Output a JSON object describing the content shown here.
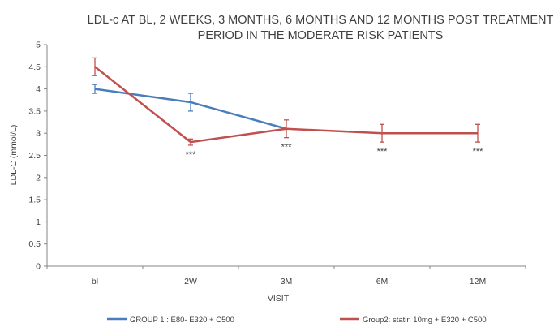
{
  "chart_data": {
    "type": "line",
    "title_lines": [
      "LDL-c AT BL, 2 WEEKS, 3 MONTHS, 6 MONTHS AND 12 MONTHS POST TREATMENT",
      "PERIOD IN THE MODERATE RISK PATIENTS"
    ],
    "xlabel": "VISIT",
    "ylabel": "LDL-C (mmol/L)",
    "categories": [
      "bl",
      "2W",
      "3M",
      "6M",
      "12M"
    ],
    "ylim": [
      0,
      5
    ],
    "yticks": [
      "0",
      "0.5",
      "1",
      "1.5",
      "2",
      "2.5",
      "3",
      "3.5",
      "4",
      "4.5",
      "5"
    ],
    "grid": false,
    "legend_position": "bottom",
    "series": [
      {
        "name": "GROUP 1 : E80- E320 + C500",
        "color": "#4a7ebb",
        "values": [
          4.0,
          3.7,
          3.1,
          null,
          null
        ],
        "errors": [
          0.1,
          0.2,
          null,
          null,
          null
        ]
      },
      {
        "name": "Group2: statin 10mg + E320 + C500",
        "color": "#c0504d",
        "values": [
          4.5,
          2.8,
          3.1,
          3.0,
          3.0
        ],
        "errors": [
          0.2,
          0.07,
          0.2,
          0.2,
          0.2
        ]
      }
    ],
    "annotations": [
      {
        "category": "2W",
        "text": "***"
      },
      {
        "category": "3M",
        "text": "***"
      },
      {
        "category": "6M",
        "text": "***"
      },
      {
        "category": "12M",
        "text": "***"
      }
    ]
  }
}
